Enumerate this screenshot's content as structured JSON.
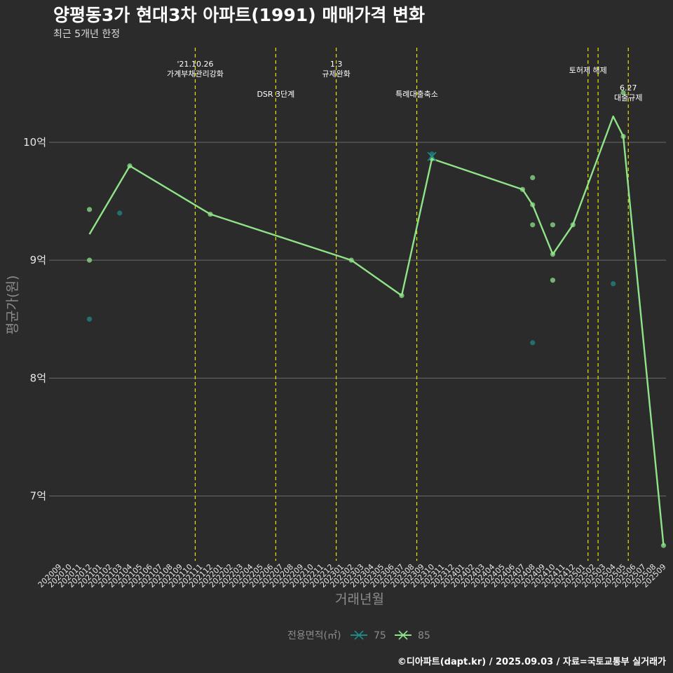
{
  "header": {
    "title": "양평동3가 현대3차 아파트(1991) 매매가격 변화",
    "subtitle": "최근 5개년 한정"
  },
  "footer": {
    "caption": "©디아파트(dapt.kr) / 2025.09.03 / 자료=국토교통부 실거래가"
  },
  "colors": {
    "background": "#2b2b2b",
    "grid": "#6a6a6a",
    "event_line": "#e5e500",
    "series_75": "#1f8a8a",
    "series_85": "#8fe388"
  },
  "chart_data": {
    "type": "line",
    "xlabel": "거래년월",
    "ylabel": "평균가(원)",
    "ylim": [
      6.45,
      10.85
    ],
    "y_ticks": [
      {
        "value": 7,
        "label": "7억"
      },
      {
        "value": 8,
        "label": "8억"
      },
      {
        "value": 9,
        "label": "9억"
      },
      {
        "value": 10,
        "label": "10억"
      }
    ],
    "x_ticks": [
      "202009",
      "202010",
      "202011",
      "202012",
      "202101",
      "202102",
      "202103",
      "202104",
      "202105",
      "202106",
      "202107",
      "202108",
      "202109",
      "202110",
      "202111",
      "202112",
      "202201",
      "202202",
      "202203",
      "202204",
      "202205",
      "202206",
      "202207",
      "202208",
      "202209",
      "202210",
      "202211",
      "202212",
      "202301",
      "202302",
      "202303",
      "202304",
      "202305",
      "202306",
      "202307",
      "202308",
      "202309",
      "202310",
      "202311",
      "202312",
      "202401",
      "202402",
      "202403",
      "202404",
      "202405",
      "202406",
      "202407",
      "202408",
      "202409",
      "202410",
      "202411",
      "202412",
      "202501",
      "202502",
      "202503",
      "202504",
      "202505",
      "202506",
      "202507",
      "202508",
      "202509"
    ],
    "events": [
      {
        "month": "202111",
        "label": "'21.10.26\n가계부채관리강화",
        "row": 1
      },
      {
        "month": "202207",
        "label": "DSR 3단계",
        "row": 2
      },
      {
        "month": "202301",
        "label": "1.3\n규제완화",
        "row": 1
      },
      {
        "month": "202309",
        "label": "특례대출축소",
        "row": 2
      },
      {
        "month": "202502",
        "label": "토허제 해제",
        "row": 0
      },
      {
        "month": "202503",
        "label": "",
        "row": 0
      },
      {
        "month": "202506",
        "label": "6.27\n대출규제",
        "row": 3
      }
    ],
    "legend": {
      "title": "전용면적(㎡)",
      "items": [
        {
          "name": "75",
          "color": "#1f8a8a"
        },
        {
          "name": "85",
          "color": "#8fe388"
        }
      ]
    },
    "series": [
      {
        "name": "85",
        "line": [
          {
            "x": "202012",
            "y": 9.22
          },
          {
            "x": "202104",
            "y": 9.8
          },
          {
            "x": "202112",
            "y": 9.39
          },
          {
            "x": "202302",
            "y": 9.0
          },
          {
            "x": "202307",
            "y": 8.7
          },
          {
            "x": "202310",
            "y": 9.86
          },
          {
            "x": "202407",
            "y": 9.6
          },
          {
            "x": "202408",
            "y": 9.47
          },
          {
            "x": "202410",
            "y": 9.05
          },
          {
            "x": "202412",
            "y": 9.3
          },
          {
            "x": "202504",
            "y": 10.22
          },
          {
            "x": "202505",
            "y": 10.05
          },
          {
            "x": "202509",
            "y": 6.58
          }
        ],
        "points": [
          {
            "x": "202012",
            "y": 9.43
          },
          {
            "x": "202012",
            "y": 9.0
          },
          {
            "x": "202104",
            "y": 9.8
          },
          {
            "x": "202112",
            "y": 9.39
          },
          {
            "x": "202302",
            "y": 9.0
          },
          {
            "x": "202307",
            "y": 8.7
          },
          {
            "x": "202310",
            "y": 9.86
          },
          {
            "x": "202407",
            "y": 9.6
          },
          {
            "x": "202408",
            "y": 9.7
          },
          {
            "x": "202408",
            "y": 9.47
          },
          {
            "x": "202408",
            "y": 9.3
          },
          {
            "x": "202410",
            "y": 9.3
          },
          {
            "x": "202410",
            "y": 9.05
          },
          {
            "x": "202410",
            "y": 8.83
          },
          {
            "x": "202412",
            "y": 9.3
          },
          {
            "x": "202505",
            "y": 10.42
          },
          {
            "x": "202505",
            "y": 10.05
          },
          {
            "x": "202509",
            "y": 6.58
          }
        ]
      },
      {
        "name": "75",
        "line": [],
        "points": [
          {
            "x": "202012",
            "y": 8.5
          },
          {
            "x": "202103",
            "y": 9.4
          },
          {
            "x": "202310",
            "y": 9.9
          },
          {
            "x": "202408",
            "y": 8.3
          },
          {
            "x": "202504",
            "y": 8.8
          }
        ]
      }
    ]
  }
}
